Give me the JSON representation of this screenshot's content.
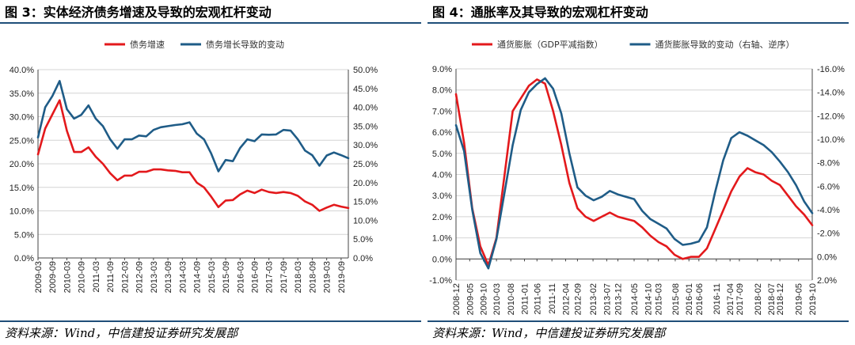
{
  "colors": {
    "red": "#e3191c",
    "blue": "#1f5c87",
    "frame": "#1f4e79"
  },
  "left": {
    "title": "图 3：实体经济债务增速及导致的宏观杠杆变动",
    "source": "资料来源：Wind，中信建投证券研究发展部"
  },
  "right": {
    "title": "图 4：通胀率及其导致的宏观杠杆变动",
    "source": "资料来源：Wind，中信建投证券研究发展部"
  },
  "chart_data": [
    {
      "type": "line",
      "title": "图 3：实体经济债务增速及导致的宏观杠杆变动",
      "legend_position": "top",
      "x": [
        "2009-03",
        "2009-06",
        "2009-09",
        "2009-12",
        "2010-03",
        "2010-06",
        "2010-09",
        "2010-12",
        "2011-03",
        "2011-06",
        "2011-09",
        "2011-12",
        "2012-03",
        "2012-06",
        "2012-09",
        "2012-12",
        "2013-03",
        "2013-06",
        "2013-09",
        "2013-12",
        "2014-03",
        "2014-06",
        "2014-09",
        "2014-12",
        "2015-03",
        "2015-06",
        "2015-09",
        "2015-12",
        "2016-03",
        "2016-06",
        "2016-09",
        "2016-12",
        "2017-03",
        "2017-06",
        "2017-09",
        "2017-12",
        "2018-03",
        "2018-06",
        "2018-09",
        "2018-12",
        "2019-03",
        "2019-06",
        "2019-09",
        "2019-12"
      ],
      "x_tick_labels": [
        "2009-03",
        "2009-09",
        "2010-03",
        "2010-09",
        "2011-03",
        "2011-09",
        "2012-03",
        "2012-09",
        "2013-03",
        "2013-09",
        "2014-03",
        "2014-09",
        "2015-03",
        "2015-09",
        "2016-03",
        "2016-09",
        "2017-03",
        "2017-09",
        "2018-03",
        "2018-09",
        "2019-03",
        "2019-09"
      ],
      "y_left_ticks": [
        "0.0%",
        "5.0%",
        "10.0%",
        "15.0%",
        "20.0%",
        "25.0%",
        "30.0%",
        "35.0%",
        "40.0%"
      ],
      "y_right_ticks": [
        "0.0%",
        "5.0%",
        "10.0%",
        "15.0%",
        "20.0%",
        "25.0%",
        "30.0%",
        "35.0%",
        "40.0%",
        "45.0%",
        "50.0%"
      ],
      "ylim_left": [
        0,
        40
      ],
      "ylim_right": [
        0,
        50
      ],
      "grid": true,
      "series": [
        {
          "name": "债务增速",
          "axis": "left",
          "color": "#e3191c",
          "values": [
            22,
            27.5,
            30.5,
            33.5,
            27,
            22.5,
            22.5,
            23.5,
            21.5,
            20,
            18,
            16.5,
            17.5,
            17.5,
            18.3,
            18.3,
            18.8,
            18.8,
            18.6,
            18.5,
            18.2,
            18.2,
            16,
            15,
            13,
            10.8,
            12.2,
            12.3,
            13.5,
            14.3,
            13.8,
            14.5,
            14,
            13.8,
            14,
            13.8,
            13.2,
            12,
            11.3,
            10,
            10.7,
            11.3,
            10.9,
            10.6
          ]
        },
        {
          "name": "债务增长导致的变动",
          "axis": "right",
          "color": "#1f5c87",
          "values": [
            32,
            40,
            43,
            47,
            39.5,
            37,
            38,
            40.5,
            37,
            35,
            31.5,
            29,
            31.5,
            31.5,
            32.5,
            32.3,
            34,
            34.7,
            35,
            35.3,
            35.5,
            36,
            33,
            31.5,
            27.7,
            23,
            26,
            25.7,
            29.2,
            31.5,
            31,
            32.8,
            32.7,
            32.8,
            34,
            33.8,
            31.5,
            28.5,
            27.3,
            24.5,
            27.2,
            28,
            27.3,
            26.5
          ]
        }
      ]
    },
    {
      "type": "line",
      "title": "图 4：通胀率及其导致的宏观杠杆变动",
      "legend_position": "top",
      "x": [
        "2008-12",
        "2009-03",
        "2009-06",
        "2009-09",
        "2009-12",
        "2010-03",
        "2010-06",
        "2010-09",
        "2010-12",
        "2011-03",
        "2011-06",
        "2011-09",
        "2011-12",
        "2012-03",
        "2012-06",
        "2012-09",
        "2012-12",
        "2013-03",
        "2013-06",
        "2013-09",
        "2013-12",
        "2014-03",
        "2014-06",
        "2014-09",
        "2014-12",
        "2015-03",
        "2015-06",
        "2015-09",
        "2015-12",
        "2016-03",
        "2016-06",
        "2016-09",
        "2016-12",
        "2017-03",
        "2017-06",
        "2017-09",
        "2017-12",
        "2018-03",
        "2018-06",
        "2018-09",
        "2018-12",
        "2019-03",
        "2019-06",
        "2019-09",
        "2019-12"
      ],
      "x_tick_labels": [
        "2008-12",
        "2009-05",
        "2009-10",
        "2010-03",
        "2010-08",
        "2011-01",
        "2011-06",
        "2011-11",
        "2012-04",
        "2012-09",
        "2013-02",
        "2013-07",
        "2013-12",
        "2014-05",
        "2014-10",
        "2015-03",
        "2015-08",
        "2016-01",
        "2016-06",
        "2016-11",
        "2017-04",
        "2017-09",
        "2018-02",
        "2018-07",
        "2018-12",
        "2019-05",
        "2019-10"
      ],
      "y_left_ticks": [
        "-1.0%",
        "0.0%",
        "1.0%",
        "2.0%",
        "3.0%",
        "4.0%",
        "5.0%",
        "6.0%",
        "7.0%",
        "8.0%",
        "9.0%"
      ],
      "y_right_ticks": [
        "2.0%",
        "0.0%",
        "-2.0%",
        "-4.0%",
        "-6.0%",
        "-8.0%",
        "-10.0%",
        "-12.0%",
        "-14.0%",
        "-16.0%"
      ],
      "ylim_left": [
        -1,
        9
      ],
      "ylim_right": [
        2,
        -16
      ],
      "right_axis_reversed": true,
      "grid": true,
      "series": [
        {
          "name": "通货膨胀（GDP平减指数）",
          "axis": "left",
          "color": "#e3191c",
          "values": [
            7.8,
            5.5,
            2.4,
            0.6,
            -0.3,
            1,
            4,
            7,
            7.6,
            8.2,
            8.5,
            8.3,
            7,
            5.4,
            3.6,
            2.4,
            2,
            1.8,
            2,
            2.2,
            2,
            1.9,
            1.8,
            1.5,
            1.1,
            0.8,
            0.6,
            0.2,
            0,
            0.1,
            0.1,
            0.5,
            1.4,
            2.3,
            3.2,
            3.9,
            4.3,
            4.1,
            4,
            3.7,
            3.5,
            3,
            2.5,
            2.1,
            1.6
          ]
        },
        {
          "name": "通货膨胀导致的变动（右轴、逆序）",
          "axis": "right",
          "color": "#1f5c87",
          "values": [
            -11.2,
            -9,
            -4,
            -0.3,
            1,
            -1.5,
            -5.5,
            -9.5,
            -12.5,
            -14,
            -14.7,
            -15.2,
            -14.3,
            -12.2,
            -8.8,
            -5.9,
            -5.2,
            -4.8,
            -5.1,
            -5.6,
            -5.3,
            -5.1,
            -4.9,
            -3.9,
            -3.2,
            -2.8,
            -2.4,
            -1.5,
            -1,
            -1.1,
            -1.3,
            -2.5,
            -5.5,
            -8.2,
            -10.1,
            -10.6,
            -10.3,
            -9.9,
            -9.5,
            -8.9,
            -8.1,
            -7.2,
            -6.1,
            -4.7,
            -3.7
          ]
        }
      ]
    }
  ]
}
